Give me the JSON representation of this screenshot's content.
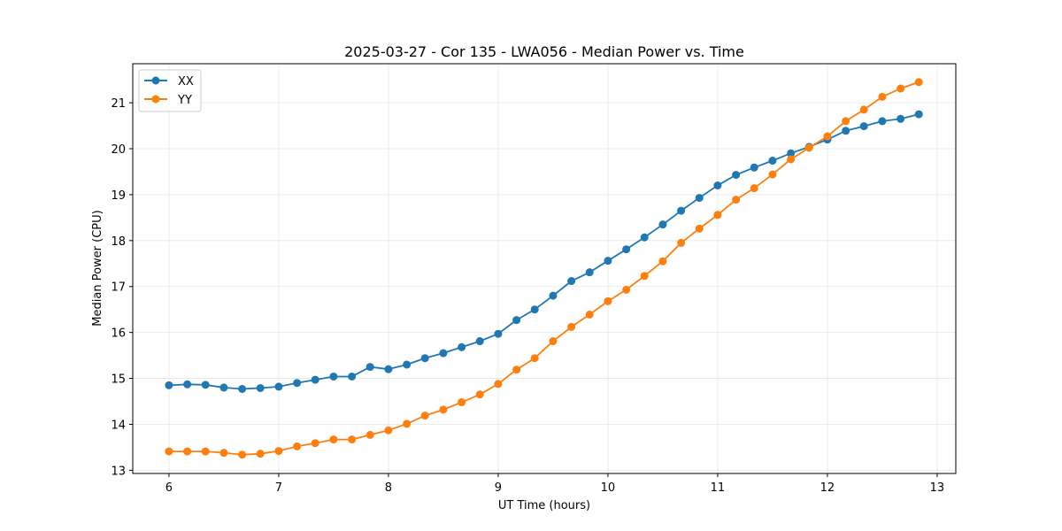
{
  "chart_data": {
    "type": "line",
    "title": "2025-03-27 - Cor 135 - LWA056 - Median Power vs. Time",
    "xlabel": "UT Time (hours)",
    "ylabel": "Median Power (CPU)",
    "xlim": [
      5.67,
      13.17
    ],
    "ylim": [
      12.93,
      21.85
    ],
    "xticks": [
      6,
      7,
      8,
      9,
      10,
      11,
      12,
      13
    ],
    "yticks": [
      13,
      14,
      15,
      16,
      17,
      18,
      19,
      20,
      21
    ],
    "grid": true,
    "legend_position": "top-left",
    "x": [
      6.0,
      6.167,
      6.333,
      6.5,
      6.667,
      6.833,
      7.0,
      7.167,
      7.333,
      7.5,
      7.667,
      7.833,
      8.0,
      8.167,
      8.333,
      8.5,
      8.667,
      8.833,
      9.0,
      9.167,
      9.333,
      9.5,
      9.667,
      9.833,
      10.0,
      10.167,
      10.333,
      10.5,
      10.667,
      10.833,
      11.0,
      11.167,
      11.333,
      11.5,
      11.667,
      11.833,
      12.0,
      12.167,
      12.333,
      12.5,
      12.667,
      12.833
    ],
    "series": [
      {
        "name": "XX",
        "color": "#1f77b4",
        "values": [
          14.85,
          14.87,
          14.86,
          14.8,
          14.77,
          14.79,
          14.82,
          14.9,
          14.97,
          15.04,
          15.04,
          15.25,
          15.2,
          15.3,
          15.44,
          15.55,
          15.68,
          15.81,
          15.97,
          16.27,
          16.5,
          16.8,
          17.12,
          17.31,
          17.56,
          17.81,
          18.07,
          18.35,
          18.65,
          18.93,
          19.2,
          19.43,
          19.59,
          19.74,
          19.9,
          20.04,
          20.2,
          20.39,
          20.49,
          20.6,
          20.65,
          20.75
        ]
      },
      {
        "name": "YY",
        "color": "#ff7f0e",
        "values": [
          13.41,
          13.41,
          13.41,
          13.38,
          13.34,
          13.36,
          13.42,
          13.52,
          13.59,
          13.67,
          13.67,
          13.77,
          13.87,
          14.01,
          14.19,
          14.32,
          14.48,
          14.65,
          14.88,
          15.19,
          15.44,
          15.81,
          16.12,
          16.39,
          16.68,
          16.93,
          17.23,
          17.55,
          17.95,
          18.26,
          18.56,
          18.89,
          19.14,
          19.44,
          19.77,
          20.02,
          20.27,
          20.6,
          20.85,
          21.13,
          21.31,
          21.45
        ]
      }
    ]
  }
}
